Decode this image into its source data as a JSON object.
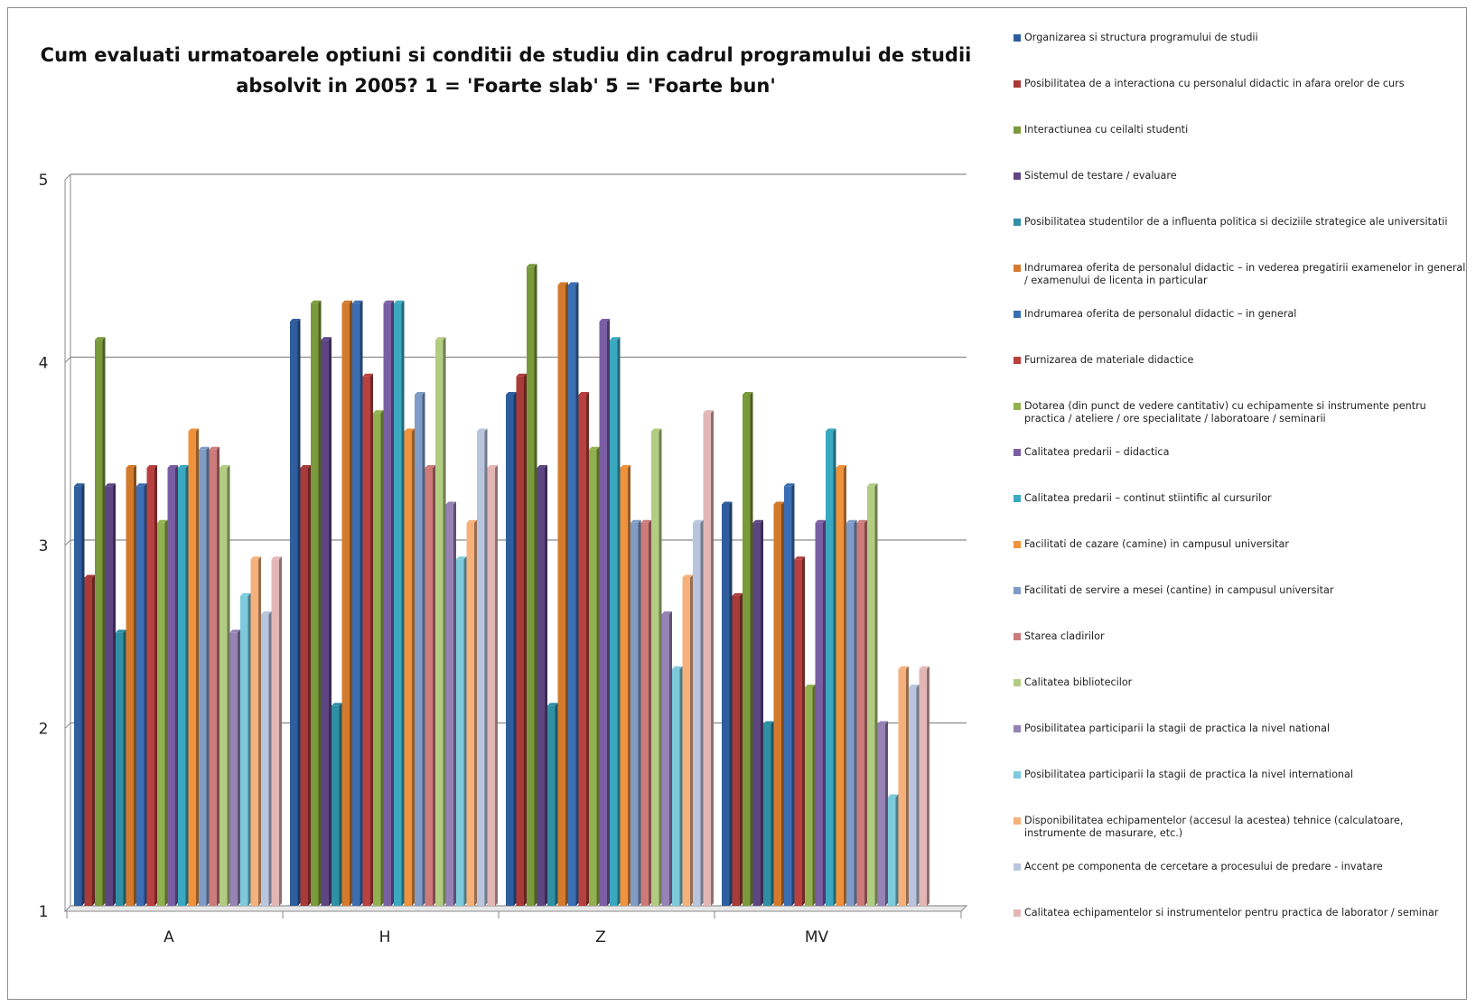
{
  "chart_data": {
    "type": "bar",
    "title": "Cum evaluati urmatoarele optiuni si conditii de studiu din cadrul programului de studii absolvit in 2005? 1 = 'Foarte slab' 5 = 'Foarte bun'",
    "xlabel": "",
    "ylabel": "",
    "ylim": [
      1,
      5
    ],
    "yticks": [
      "1",
      "2",
      "3",
      "4",
      "5"
    ],
    "grid": true,
    "legend_position": "right",
    "categories": [
      "A",
      "H",
      "Z",
      "MV"
    ],
    "series": [
      {
        "name": "Organizarea si structura programului  de studii",
        "color": "#2e5e9e",
        "values": [
          3.3,
          4.2,
          3.8,
          3.2
        ]
      },
      {
        "name": "Posibilitatea de a interactiona cu personalul didactic in afara orelor de curs",
        "color": "#a83a38",
        "values": [
          2.8,
          3.4,
          3.9,
          2.7
        ]
      },
      {
        "name": "Interactiunea cu ceilalti studenti",
        "color": "#7a9a3c",
        "values": [
          4.1,
          4.3,
          4.5,
          3.8
        ]
      },
      {
        "name": "Sistemul de testare / evaluare",
        "color": "#5d4682",
        "values": [
          3.3,
          4.1,
          3.4,
          3.1
        ]
      },
      {
        "name": "Posibilitatea studentilor de a influenta politica si deciziile strategice ale universitatii",
        "color": "#2f8fa3",
        "values": [
          2.5,
          2.1,
          2.1,
          2.0
        ]
      },
      {
        "name": "Indrumarea oferita de personalul didactic – in vederea pregatirii examenelor in general / examenului de licenta in particular",
        "color": "#d47a2c",
        "values": [
          3.4,
          4.3,
          4.4,
          3.2
        ]
      },
      {
        "name": "Indrumarea oferita de personalul didactic – in general",
        "color": "#3c6eb4",
        "values": [
          3.3,
          4.3,
          4.4,
          3.3
        ]
      },
      {
        "name": "Furnizarea de materiale didactice",
        "color": "#b8403e",
        "values": [
          3.4,
          3.9,
          3.8,
          2.9
        ]
      },
      {
        "name": "Dotarea (din punct de vedere cantitativ) cu echipamente si instrumente pentru practica / ateliere / ore specialitate / laboratoare / seminarii",
        "color": "#92b04e",
        "values": [
          3.1,
          3.7,
          3.5,
          2.2
        ]
      },
      {
        "name": "Calitatea predarii – didactica",
        "color": "#7a5ea3",
        "values": [
          3.4,
          4.3,
          4.2,
          3.1
        ]
      },
      {
        "name": "Calitatea predarii – continut stiintific al cursurilor",
        "color": "#3aa8c0",
        "values": [
          3.4,
          4.3,
          4.1,
          3.6
        ]
      },
      {
        "name": "Facilitati de cazare (camine)  in campusul universitar",
        "color": "#f0923c",
        "values": [
          3.6,
          3.6,
          3.4,
          3.4
        ]
      },
      {
        "name": "Facilitati de servire a mesei (cantine) in campusul universitar",
        "color": "#7f9cc8",
        "values": [
          3.5,
          3.8,
          3.1,
          3.1
        ]
      },
      {
        "name": "Starea cladirilor",
        "color": "#cc7b7a",
        "values": [
          3.5,
          3.4,
          3.1,
          3.1
        ]
      },
      {
        "name": "Calitatea bibliotecilor",
        "color": "#b2cc82",
        "values": [
          3.4,
          4.1,
          3.6,
          3.3
        ]
      },
      {
        "name": "Posibilitatea participarii  la stagii de practica la nivel national",
        "color": "#9682b4",
        "values": [
          2.5,
          3.2,
          2.6,
          2.0
        ]
      },
      {
        "name": "Posibilitatea participarii  la stagii de practica la nivel international",
        "color": "#7ccadc",
        "values": [
          2.7,
          2.9,
          2.3,
          1.6
        ]
      },
      {
        "name": "Disponibilitatea echipamentelor (accesul la acestea) tehnice (calculatoare, instrumente de masurare, etc.)",
        "color": "#f6b07c",
        "values": [
          2.9,
          3.1,
          2.8,
          2.3
        ]
      },
      {
        "name": "Accent pe componenta de cercetare a procesului de predare - invatare",
        "color": "#b9c5df",
        "values": [
          2.6,
          3.6,
          3.1,
          2.2
        ]
      },
      {
        "name": "Calitatea echipamentelor si instrumentelor pentru practica de laborator / seminar",
        "color": "#e2b6b5",
        "values": [
          2.9,
          3.4,
          3.7,
          2.3
        ]
      }
    ]
  }
}
